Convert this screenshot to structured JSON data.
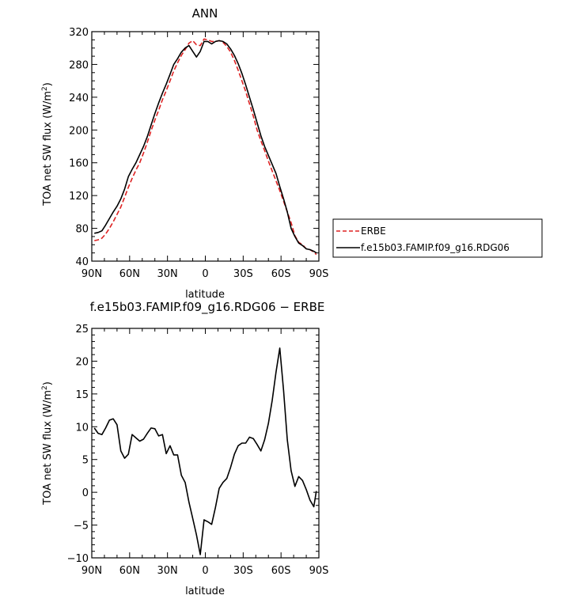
{
  "chart_data": [
    {
      "type": "line",
      "title": "ANN",
      "xlabel": "latitude",
      "ylabel": "TOA net SW flux (W/m2)",
      "ylabel_parts": [
        "TOA net SW flux (W/m",
        "2",
        ")"
      ],
      "xlim": [
        90,
        -90
      ],
      "ylim": [
        40,
        320
      ],
      "xticks": [
        90,
        60,
        30,
        0,
        -30,
        -60,
        -90
      ],
      "xtick_labels": [
        "90N",
        "60N",
        "30N",
        "0",
        "30S",
        "60S",
        "90S"
      ],
      "yticks": [
        40,
        80,
        120,
        160,
        200,
        240,
        280,
        320
      ],
      "ytick_labels": [
        "40",
        "80",
        "120",
        "160",
        "200",
        "240",
        "280",
        "320"
      ],
      "legend": "right",
      "series": [
        {
          "name": "ERBE",
          "color": "#dd2222",
          "dash": "dashed",
          "x": [
            88,
            85,
            82,
            79,
            76,
            73,
            70,
            67,
            64,
            61,
            58,
            55,
            52,
            49,
            46,
            43,
            40,
            37,
            34,
            31,
            28,
            25,
            22,
            19,
            16,
            13,
            10,
            7,
            4,
            1,
            -2,
            -5,
            -8,
            -11,
            -14,
            -17,
            -20,
            -23,
            -26,
            -29,
            -32,
            -35,
            -38,
            -41,
            -44,
            -47,
            -50,
            -53,
            -56,
            -59,
            -62,
            -65,
            -68,
            -71,
            -74,
            -77,
            -80,
            -83,
            -86,
            -88
          ],
          "y": [
            65,
            66,
            68,
            73,
            80,
            88,
            97,
            106,
            118,
            130,
            141,
            151,
            160,
            172,
            185,
            199,
            212,
            224,
            237,
            248,
            260,
            272,
            282,
            291,
            298,
            306,
            309,
            304,
            303,
            311,
            310,
            308,
            308,
            309,
            307,
            302,
            295,
            285,
            273,
            260,
            247,
            232,
            217,
            200,
            187,
            175,
            162,
            150,
            138,
            126,
            113,
            100,
            87,
            71,
            63,
            60,
            55,
            54,
            51,
            48
          ]
        },
        {
          "name": "f.e15b03.FAMIP.f09_g16.RDG06",
          "color": "#000000",
          "dash": "solid",
          "x": [
            88,
            85,
            82,
            79,
            76,
            73,
            70,
            67,
            64,
            61,
            58,
            55,
            52,
            49,
            46,
            43,
            40,
            37,
            34,
            31,
            28,
            25,
            22,
            19,
            16,
            13,
            10,
            7,
            4,
            1,
            -2,
            -5,
            -8,
            -11,
            -14,
            -17,
            -20,
            -23,
            -26,
            -29,
            -32,
            -35,
            -38,
            -41,
            -44,
            -47,
            -50,
            -53,
            -56,
            -59,
            -62,
            -65,
            -68,
            -71,
            -74,
            -77,
            -80,
            -83,
            -86,
            -88
          ],
          "y": [
            74,
            75,
            77,
            84,
            92,
            100,
            107,
            116,
            128,
            143,
            152,
            160,
            170,
            180,
            192,
            206,
            220,
            233,
            245,
            256,
            268,
            280,
            287,
            295,
            300,
            303,
            296,
            289,
            296,
            308,
            308,
            305,
            308,
            309,
            308,
            305,
            299,
            291,
            281,
            269,
            255,
            240,
            225,
            209,
            193,
            180,
            169,
            158,
            147,
            131,
            116,
            100,
            80,
            70,
            62,
            59,
            55,
            54,
            52,
            50
          ]
        }
      ]
    },
    {
      "type": "line",
      "title": "f.e15b03.FAMIP.f09_g16.RDG06 − ERBE",
      "xlabel": "latitude",
      "ylabel": "TOA net SW flux (W/m2)",
      "ylabel_parts": [
        "TOA net SW flux (W/m",
        "2",
        ")"
      ],
      "xlim": [
        90,
        -90
      ],
      "ylim": [
        -10,
        25
      ],
      "xticks": [
        90,
        60,
        30,
        0,
        -30,
        -60,
        -90
      ],
      "xtick_labels": [
        "90N",
        "60N",
        "30N",
        "0",
        "30S",
        "60S",
        "90S"
      ],
      "yticks": [
        -10,
        -5,
        0,
        5,
        10,
        15,
        20,
        25
      ],
      "ytick_labels": [
        "−10",
        "−5",
        "0",
        "5",
        "10",
        "15",
        "20",
        "25"
      ],
      "series": [
        {
          "color": "#000000",
          "dash": "solid",
          "x": [
            88,
            85,
            82,
            79,
            76,
            73,
            70,
            67,
            64,
            61,
            58,
            55,
            52,
            49,
            46,
            43,
            40,
            37,
            34,
            31,
            28,
            25,
            22,
            19,
            16,
            13,
            10,
            7,
            4,
            1,
            -2,
            -5,
            -8,
            -11,
            -14,
            -17,
            -20,
            -23,
            -26,
            -29,
            -32,
            -35,
            -38,
            -41,
            -44,
            -47,
            -50,
            -53,
            -56,
            -59,
            -62,
            -65,
            -68,
            -71,
            -74,
            -77,
            -80,
            -83,
            -86,
            -88
          ],
          "y": [
            9.8,
            9.0,
            8.8,
            9.8,
            11.0,
            11.2,
            10.3,
            6.3,
            5.2,
            5.8,
            8.8,
            8.3,
            7.8,
            8.1,
            9.0,
            9.8,
            9.7,
            8.6,
            8.8,
            5.9,
            7.1,
            5.7,
            5.7,
            2.6,
            1.5,
            -1.5,
            -4.0,
            -6.5,
            -9.5,
            -4.2,
            -4.5,
            -4.9,
            -2.3,
            0.6,
            1.5,
            2.1,
            3.8,
            5.8,
            7.1,
            7.5,
            7.5,
            8.4,
            8.2,
            7.3,
            6.3,
            8.0,
            10.5,
            14.0,
            18.3,
            22.0,
            15.5,
            8.0,
            3.3,
            0.9,
            2.4,
            1.8,
            0.4,
            -1.2,
            -2.2,
            0.2
          ]
        }
      ]
    }
  ]
}
